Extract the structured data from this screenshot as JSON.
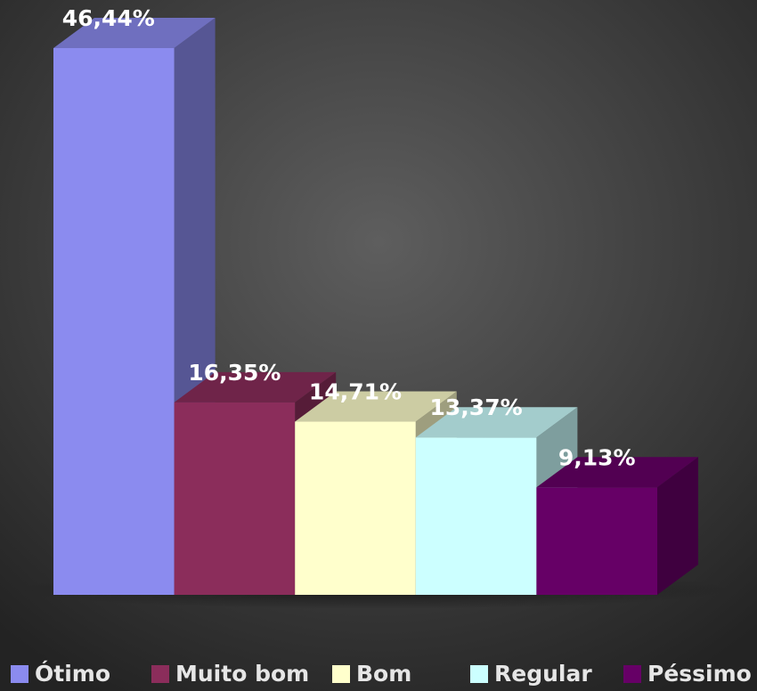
{
  "chart_data": {
    "type": "bar3d",
    "categories": [
      "Ótimo",
      "Muito bom",
      "Bom",
      "Regular",
      "Péssimo"
    ],
    "values": [
      46.44,
      16.35,
      14.71,
      13.37,
      9.13
    ],
    "value_labels": [
      "46,44%",
      "16,35%",
      "14,71%",
      "13,37%",
      "9,13%"
    ],
    "colors": [
      "#8b8bef",
      "#8b2d5b",
      "#ffffcc",
      "#ccffff",
      "#660066"
    ],
    "legend": "bottom"
  }
}
